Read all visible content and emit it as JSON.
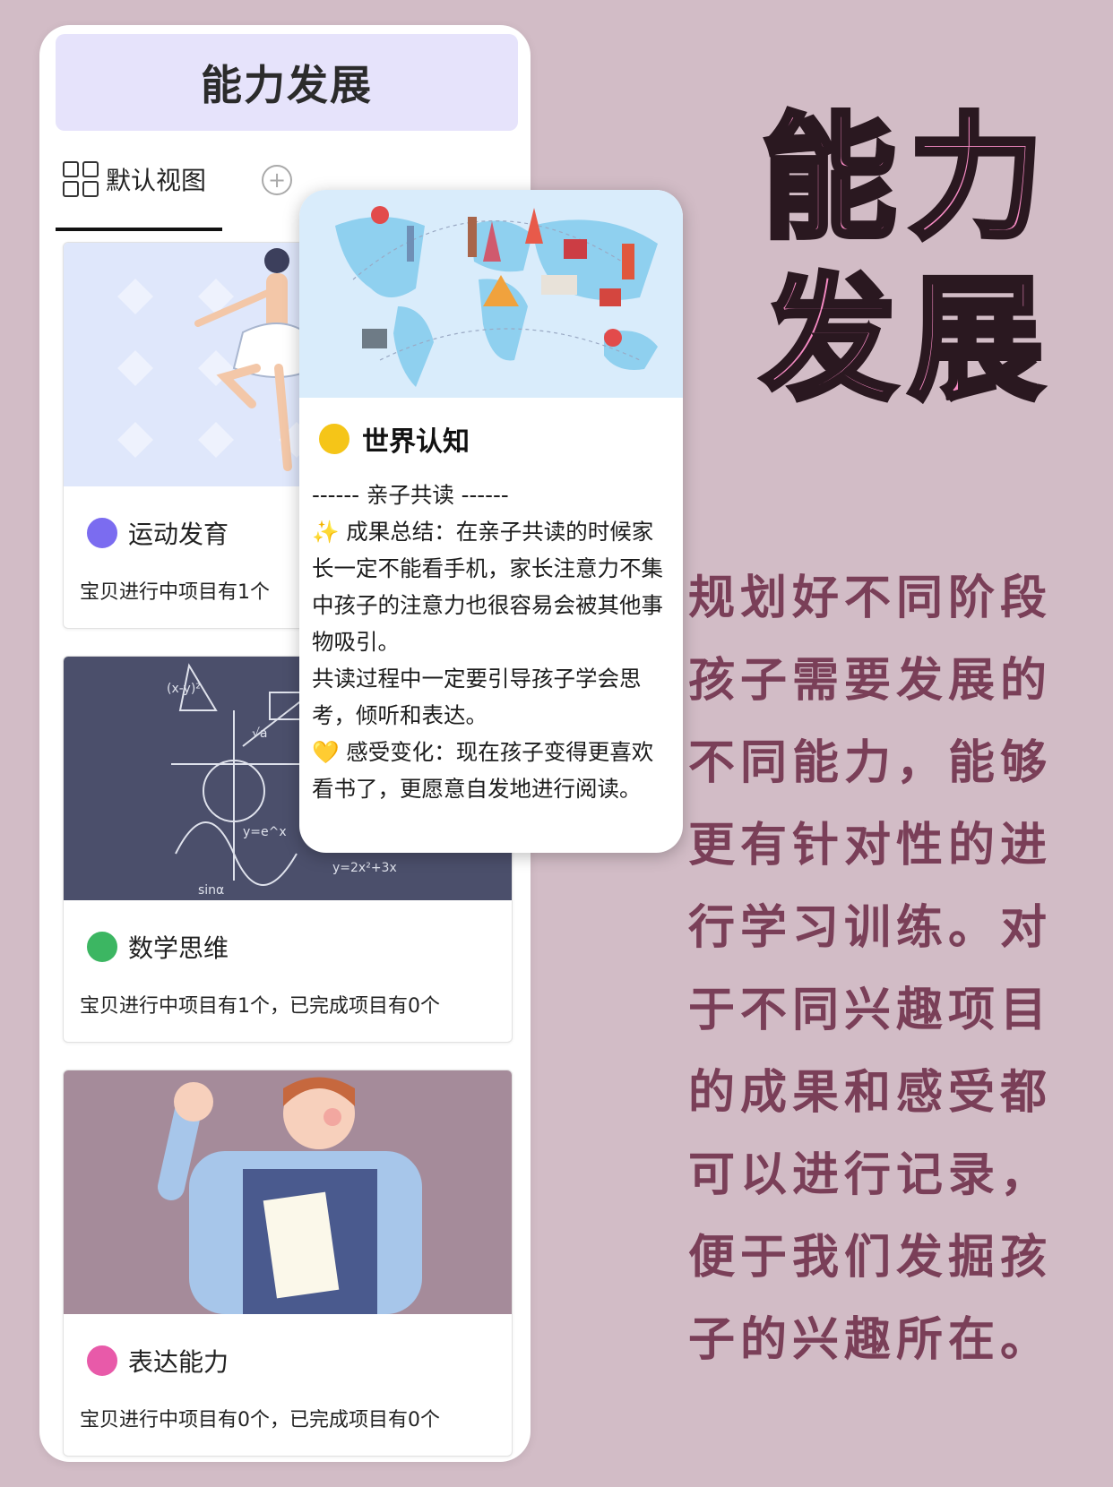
{
  "header": {
    "title": "能力发展"
  },
  "tabs": {
    "default_label": "默认视图",
    "add_label": "+"
  },
  "cards": [
    {
      "title": "运动发育",
      "desc": "宝贝进行中项目有1个",
      "ring_color": "#7b6cf0"
    },
    {
      "title": "数学思维",
      "desc": "宝贝进行中项目有1个，已完成项目有0个",
      "ring_color": "#3cb662"
    },
    {
      "title": "表达能力",
      "desc": "宝贝进行中项目有0个，已完成项目有0个",
      "ring_color": "#e85aa9"
    }
  ],
  "popup": {
    "title": "世界认知",
    "ring_color": "#f5c518",
    "divider_line": "------ 亲子共读 ------",
    "p1": "✨ 成果总结：在亲子共读的时候家长一定不能看手机，家长注意力不集中孩子的注意力也很容易会被其他事物吸引。",
    "p2": "共读过程中一定要引导孩子学会思考，倾听和表达。",
    "p3": "💛 感受变化：现在孩子变得更喜欢看书了，更愿意自发地进行阅读。"
  },
  "side": {
    "big_title": "能力发展",
    "text": "规划好不同阶段孩子需要发展的不同能力，能够更有针对性的进行学习训练。对于不同兴趣项目的成果和感受都可以进行记录，便于我们发掘孩子的兴趣所在。"
  },
  "colors": {
    "background": "#d2bcc6",
    "title_pink": "#f78bc4",
    "side_text": "#7a3f58",
    "header_bg": "#e6e3fb"
  }
}
